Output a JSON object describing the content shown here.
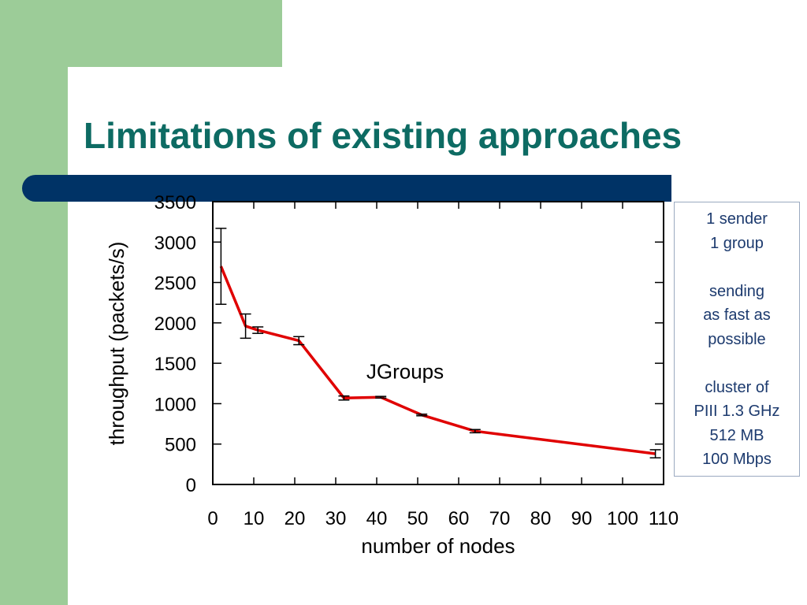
{
  "slide": {
    "title": "Limitations of existing approaches",
    "colors": {
      "title": "#0d6b63",
      "accent_green": "#9ccc98",
      "bar_navy": "#003366",
      "line": "#e00000",
      "info_text": "#1c3a6e"
    },
    "info_box": {
      "groups": [
        [
          "1 sender",
          "1 group"
        ],
        [
          "sending",
          "as fast as",
          "possible"
        ],
        [
          "cluster of",
          "PIII 1.3 GHz",
          "512 MB",
          "100 Mbps"
        ]
      ]
    }
  },
  "chart_data": {
    "type": "line",
    "title": "",
    "xlabel": "number of nodes",
    "ylabel": "throughput (packets/s)",
    "xlim": [
      0,
      110
    ],
    "ylim": [
      0,
      3500
    ],
    "x_ticks": [
      0,
      10,
      20,
      30,
      40,
      50,
      60,
      70,
      80,
      90,
      100,
      110
    ],
    "x_tick_labels": [
      "0",
      "10",
      "20",
      "30",
      "40",
      "50",
      "60",
      "70",
      "80",
      "90",
      "100",
      "110"
    ],
    "y_ticks": [
      0,
      500,
      1000,
      1500,
      2000,
      2500,
      3000,
      3500
    ],
    "y_tick_labels": [
      "0",
      "500",
      "1000",
      "1500",
      "2000",
      "2500",
      "3000",
      "3500"
    ],
    "grid": false,
    "legend": "none",
    "annotations": [
      {
        "text": "JGroups",
        "x": 45,
        "y": 1400
      }
    ],
    "series": [
      {
        "name": "JGroups",
        "x": [
          2,
          8,
          11,
          21,
          32,
          41,
          51,
          64,
          108
        ],
        "y": [
          2700,
          1960,
          1910,
          1780,
          1070,
          1080,
          860,
          660,
          380
        ],
        "err": [
          470,
          150,
          40,
          50,
          25,
          10,
          10,
          20,
          50
        ]
      }
    ]
  }
}
